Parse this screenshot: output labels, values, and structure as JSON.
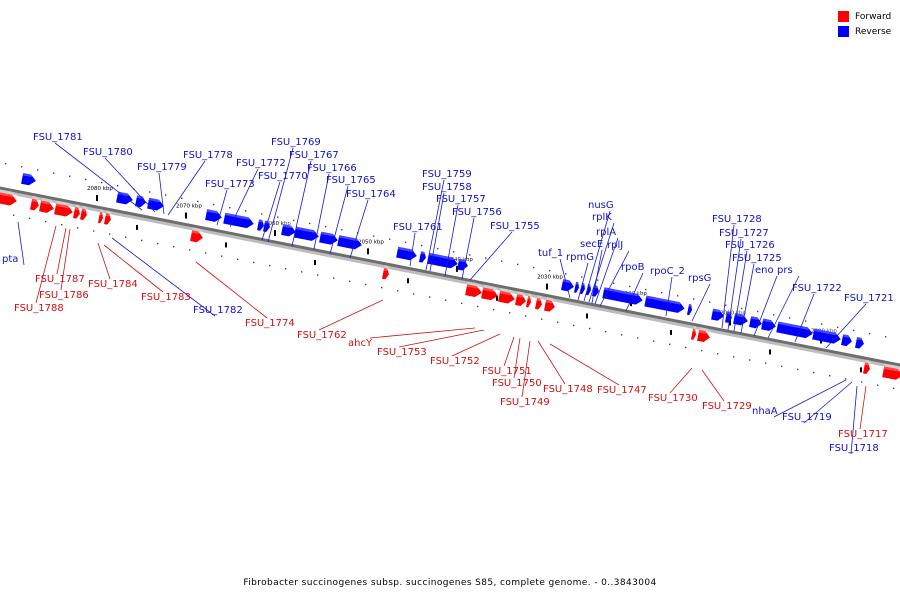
{
  "legend": {
    "forward_label": "Forward",
    "reverse_label": "Reverse",
    "forward_color": "#ff0000",
    "reverse_color": "#0000ff"
  },
  "colors": {
    "backbone": "#6e6e6e",
    "forward_label": "#d01010",
    "reverse_label": "#1010c8",
    "line_forward": "#d01010",
    "line_reverse": "#1818d0"
  },
  "caption": "Fibrobacter succinogenes subsp. succinogenes S85, complete genome. - 0..3843004",
  "scale_labels": [
    "2080 kbp",
    "2070 kbp",
    "2060 kbp",
    "2050 kbp",
    "2040 kbp",
    "2030 kbp",
    "2020 kbp",
    "2010 kbp",
    "2000 kbp"
  ],
  "genes_reverse": [
    "FSU_1781",
    "FSU_1780",
    "FSU_1779",
    "FSU_1778",
    "FSU_1773",
    "FSU_1772",
    "FSU_1770",
    "FSU_1769",
    "FSU_1767",
    "FSU_1766",
    "FSU_1765",
    "FSU_1764",
    "FSU_1761",
    "FSU_1759",
    "FSU_1758",
    "FSU_1757",
    "FSU_1756",
    "FSU_1755",
    "tuf_1",
    "rpmG",
    "nusG",
    "rplK",
    "secE",
    "rplA",
    "rplJ",
    "rpoB",
    "rpoC_2",
    "rpsG",
    "FSU_1728",
    "FSU_1727",
    "FSU_1726",
    "FSU_1725",
    "eno",
    "prs",
    "FSU_1722",
    "FSU_1721",
    "pta",
    "FSU_1782",
    "nhaA",
    "FSU_1719",
    "FSU_1718"
  ],
  "genes_forward": [
    "FSU_1787",
    "FSU_1786",
    "FSU_1788",
    "FSU_1784",
    "FSU_1783",
    "FSU_1774",
    "FSU_1762",
    "ahcY",
    "FSU_1753",
    "FSU_1752",
    "FSU_1751",
    "FSU_1750",
    "FSU_1749",
    "FSU_1748",
    "FSU_1747",
    "FSU_1730",
    "FSU_1729",
    "FSU_1717"
  ]
}
